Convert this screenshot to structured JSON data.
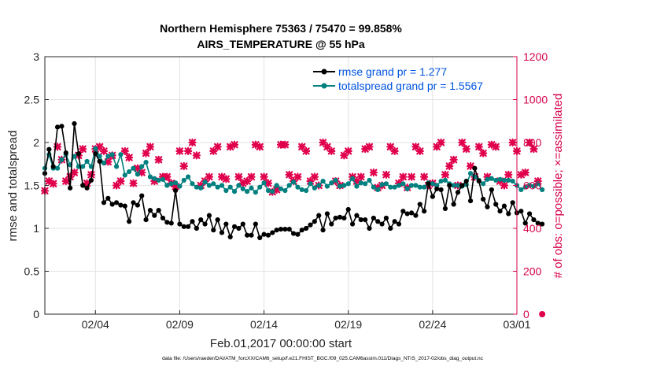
{
  "chart_data": {
    "type": "line",
    "title": "Northern Hemisphere 75363 / 75470 = 99.858%",
    "subtitle": "AIRS_TEMPERATURE @ 55 hPa",
    "xlabel": "Feb.01,2017 00:00:00 start",
    "ylabel_left": "rmse and totalspread",
    "ylabel_right": "# of obs: o=possible; ×=assimilated",
    "footnote": "data file: /Users/raeder/DAI/ATM_forcXX/CAM6_setup/f.e21.FHIST_BGC.f09_025.CAM6assim.011/Diags_NTrS_2017-02/obs_diag_output.nc",
    "xlim": [
      1,
      29
    ],
    "ylim_left": [
      0,
      3
    ],
    "ylim_right": [
      0,
      1200
    ],
    "x_ticks": [
      {
        "value": 4,
        "label": "02/04"
      },
      {
        "value": 9,
        "label": "02/09"
      },
      {
        "value": 14,
        "label": "02/14"
      },
      {
        "value": 19,
        "label": "02/19"
      },
      {
        "value": 24,
        "label": "02/24"
      },
      {
        "value": 29,
        "label": "03/01"
      }
    ],
    "left_ticks": [
      {
        "value": 0,
        "label": "0"
      },
      {
        "value": 0.5,
        "label": "0.5"
      },
      {
        "value": 1,
        "label": "1"
      },
      {
        "value": 1.5,
        "label": "1.5"
      },
      {
        "value": 2,
        "label": "2"
      },
      {
        "value": 2.5,
        "label": "2.5"
      },
      {
        "value": 3,
        "label": "3"
      }
    ],
    "right_ticks": [
      {
        "value": 0,
        "label": "0"
      },
      {
        "value": 200,
        "label": "200"
      },
      {
        "value": 400,
        "label": "400"
      },
      {
        "value": 600,
        "label": "600"
      },
      {
        "value": 800,
        "label": "800"
      },
      {
        "value": 1000,
        "label": "1000"
      },
      {
        "value": 1200,
        "label": "1200"
      }
    ],
    "grid": true,
    "legend_position": "top-right",
    "x_start": 1.0,
    "x_step": 0.25,
    "series": [
      {
        "name": "rmse grand pr = 1.277",
        "axis": "left",
        "color": "#000000",
        "marker": "circle",
        "values": [
          1.64,
          1.92,
          1.72,
          2.18,
          2.19,
          1.88,
          1.47,
          2.22,
          1.87,
          1.5,
          1.47,
          1.56,
          1.87,
          1.78,
          1.3,
          1.35,
          1.28,
          1.3,
          1.27,
          1.26,
          1.08,
          1.3,
          1.27,
          1.38,
          1.1,
          1.21,
          1.15,
          1.21,
          1.12,
          1.07,
          1.06,
          1.44,
          1.05,
          1.02,
          1.02,
          1.08,
          1.0,
          1.1,
          1.05,
          1.15,
          0.98,
          1.1,
          0.95,
          1.05,
          0.9,
          1.02,
          1.0,
          1.05,
          0.92,
          0.92,
          1.05,
          0.89,
          0.93,
          0.92,
          0.95,
          0.98,
          0.99,
          0.99,
          0.99,
          0.94,
          0.93,
          0.98,
          1.0,
          1.04,
          1.08,
          1.15,
          0.98,
          1.17,
          1.05,
          1.12,
          1.13,
          1.12,
          1.22,
          1.05,
          1.15,
          1.1,
          1.1,
          1.0,
          1.12,
          1.08,
          1.05,
          1.12,
          1.0,
          1.08,
          1.05,
          1.2,
          1.17,
          1.18,
          1.15,
          1.28,
          1.2,
          1.52,
          1.37,
          1.46,
          1.45,
          1.23,
          1.5,
          1.28,
          1.42,
          1.5,
          1.55,
          1.32,
          1.7,
          1.55,
          1.34,
          1.25,
          1.45,
          1.28,
          1.2,
          1.26,
          1.17,
          1.3,
          1.18,
          1.2,
          1.06,
          1.17,
          1.1,
          1.06,
          1.05
        ]
      },
      {
        "name": "totalspread grand pr = 1.5567",
        "axis": "left",
        "color": "#00807f",
        "marker": "circle",
        "values": [
          1.7,
          1.86,
          1.7,
          1.7,
          1.8,
          1.86,
          1.74,
          1.84,
          1.72,
          1.72,
          1.78,
          1.72,
          1.93,
          1.84,
          1.76,
          1.84,
          1.86,
          1.72,
          1.86,
          1.62,
          1.66,
          1.7,
          1.63,
          1.72,
          1.77,
          1.6,
          1.58,
          1.56,
          1.57,
          1.5,
          1.52,
          1.53,
          1.49,
          1.56,
          1.6,
          1.52,
          1.48,
          1.47,
          1.54,
          1.5,
          1.52,
          1.48,
          1.5,
          1.44,
          1.48,
          1.43,
          1.5,
          1.46,
          1.43,
          1.47,
          1.42,
          1.48,
          1.53,
          1.44,
          1.43,
          1.5,
          1.46,
          1.44,
          1.5,
          1.54,
          1.48,
          1.45,
          1.44,
          1.52,
          1.47,
          1.5,
          1.55,
          1.49,
          1.53,
          1.56,
          1.49,
          1.5,
          1.52,
          1.58,
          1.49,
          1.53,
          1.52,
          1.56,
          1.48,
          1.45,
          1.51,
          1.52,
          1.48,
          1.48,
          1.5,
          1.52,
          1.46,
          1.5,
          1.5,
          1.48,
          1.48,
          1.53,
          1.52,
          1.5,
          1.55,
          1.56,
          1.52,
          1.5,
          1.5,
          1.49,
          1.51,
          1.64,
          1.6,
          1.56,
          1.52,
          1.57,
          1.58,
          1.56,
          1.57,
          1.56,
          1.56,
          1.55,
          1.5,
          1.45,
          1.48,
          1.5,
          1.49,
          1.52,
          1.45
        ]
      },
      {
        "name": "# of obs assimilated",
        "axis": "right",
        "color": "#e0004c",
        "marker": "x",
        "values": [
          575,
          620,
          608,
          780,
          720,
          620,
          640,
          660,
          740,
          770,
          610,
          650,
          770,
          780,
          760,
          710,
          740,
          600,
          620,
          760,
          730,
          610,
          680,
          660,
          750,
          780,
          620,
          720,
          640,
          640,
          610,
          595,
          760,
          690,
          760,
          800,
          740,
          600,
          620,
          640,
          760,
          780,
          640,
          630,
          780,
          790,
          640,
          610,
          620,
          640,
          790,
          780,
          640,
          610,
          570,
          580,
          790,
          790,
          650,
          620,
          640,
          780,
          760,
          620,
          640,
          600,
          800,
          780,
          760,
          620,
          600,
          740,
          760,
          640,
          620,
          640,
          770,
          780,
          660,
          590,
          600,
          650,
          780,
          760,
          610,
          640,
          590,
          640,
          780,
          760,
          640,
          600,
          610,
          780,
          800,
          650,
          690,
          720,
          600,
          800,
          770,
          690,
          640,
          780,
          750,
          640,
          790,
          780,
          620,
          600,
          650,
          800,
          760,
          650,
          660,
          800,
          770,
          620,
          0
        ]
      }
    ]
  }
}
